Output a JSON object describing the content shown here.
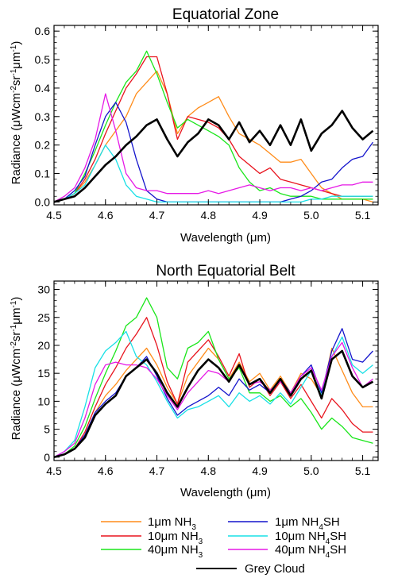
{
  "chart_data": [
    {
      "type": "line",
      "title": "Equatorial Zone",
      "xlabel": "Wavelength (μm)",
      "ylabel": "Radiance (μWcm⁻²sr⁻¹μm⁻¹)",
      "xlim": [
        4.5,
        5.13
      ],
      "ylim": [
        -0.01,
        0.62
      ],
      "xticks": [
        "4.5",
        "4.6",
        "4.7",
        "4.8",
        "4.9",
        "5.0",
        "5.1"
      ],
      "yticks": [
        "0.0",
        "0.1",
        "0.2",
        "0.3",
        "0.4",
        "0.5",
        "0.6"
      ],
      "x": [
        4.5,
        4.52,
        4.54,
        4.56,
        4.58,
        4.6,
        4.62,
        4.64,
        4.66,
        4.68,
        4.7,
        4.72,
        4.74,
        4.76,
        4.78,
        4.8,
        4.82,
        4.84,
        4.86,
        4.88,
        4.9,
        4.92,
        4.94,
        4.96,
        4.98,
        5.0,
        5.02,
        5.04,
        5.06,
        5.08,
        5.1,
        5.12
      ],
      "series": [
        {
          "name": "1μm NH₃",
          "color": "#ff8c1a",
          "values": [
            0.0,
            0.01,
            0.03,
            0.07,
            0.13,
            0.2,
            0.25,
            0.3,
            0.38,
            0.42,
            0.46,
            0.38,
            0.24,
            0.3,
            0.33,
            0.35,
            0.37,
            0.3,
            0.24,
            0.22,
            0.2,
            0.17,
            0.14,
            0.14,
            0.15,
            0.1,
            0.05,
            0.03,
            0.01,
            0.01,
            0.01,
            0.0
          ]
        },
        {
          "name": "10μm NH₃",
          "color": "#e8141e",
          "values": [
            0.0,
            0.01,
            0.03,
            0.08,
            0.15,
            0.24,
            0.32,
            0.4,
            0.45,
            0.51,
            0.51,
            0.38,
            0.22,
            0.3,
            0.29,
            0.28,
            0.26,
            0.22,
            0.16,
            0.13,
            0.1,
            0.12,
            0.08,
            0.07,
            0.06,
            0.05,
            0.04,
            0.03,
            0.02,
            0.02,
            0.02,
            0.02
          ]
        },
        {
          "name": "40μm NH₃",
          "color": "#1ae61a",
          "values": [
            0.0,
            0.01,
            0.03,
            0.1,
            0.18,
            0.27,
            0.35,
            0.42,
            0.46,
            0.53,
            0.45,
            0.35,
            0.26,
            0.29,
            0.27,
            0.25,
            0.23,
            0.2,
            0.12,
            0.07,
            0.04,
            0.05,
            0.03,
            0.02,
            0.02,
            0.02,
            0.01,
            0.01,
            0.01,
            0.01,
            0.01,
            0.01
          ]
        },
        {
          "name": "1μm NH₄SH",
          "color": "#1414cc",
          "values": [
            0.0,
            0.01,
            0.04,
            0.09,
            0.2,
            0.3,
            0.35,
            0.28,
            0.15,
            0.04,
            0.01,
            0.0,
            0.0,
            0.0,
            0.0,
            0.0,
            0.0,
            0.0,
            0.0,
            0.0,
            0.0,
            0.0,
            0.0,
            0.01,
            0.02,
            0.04,
            0.07,
            0.08,
            0.12,
            0.15,
            0.16,
            0.21
          ]
        },
        {
          "name": "10μm NH₄SH",
          "color": "#19e0e6",
          "values": [
            0.0,
            0.01,
            0.03,
            0.06,
            0.13,
            0.2,
            0.15,
            0.06,
            0.02,
            0.01,
            0.0,
            0.0,
            0.0,
            0.0,
            0.0,
            0.0,
            0.0,
            0.0,
            0.0,
            0.0,
            0.0,
            0.0,
            0.0,
            0.0,
            0.0,
            0.01,
            0.01,
            0.02,
            0.02,
            0.02,
            0.02,
            0.02
          ]
        },
        {
          "name": "40μm NH₄SH",
          "color": "#e619e6",
          "values": [
            0.0,
            0.02,
            0.05,
            0.12,
            0.22,
            0.38,
            0.25,
            0.1,
            0.05,
            0.04,
            0.04,
            0.03,
            0.03,
            0.03,
            0.03,
            0.04,
            0.03,
            0.04,
            0.05,
            0.06,
            0.05,
            0.04,
            0.05,
            0.05,
            0.04,
            0.05,
            0.04,
            0.05,
            0.06,
            0.06,
            0.07,
            0.07
          ]
        },
        {
          "name": "Grey Cloud",
          "color": "#000000",
          "values": [
            0.0,
            0.01,
            0.02,
            0.05,
            0.09,
            0.13,
            0.16,
            0.2,
            0.23,
            0.27,
            0.29,
            0.22,
            0.16,
            0.21,
            0.24,
            0.29,
            0.27,
            0.22,
            0.28,
            0.21,
            0.25,
            0.2,
            0.27,
            0.2,
            0.29,
            0.18,
            0.24,
            0.27,
            0.32,
            0.26,
            0.22,
            0.25
          ]
        }
      ]
    },
    {
      "type": "line",
      "title": "North Equatorial Belt",
      "xlabel": "Wavelength (μm)",
      "ylabel": "Radiance (μWcm⁻²sr⁻¹μm⁻¹)",
      "xlim": [
        4.5,
        5.13
      ],
      "ylim": [
        -0.6,
        31.5
      ],
      "xticks": [
        "4.5",
        "4.6",
        "4.7",
        "4.8",
        "4.9",
        "5.0",
        "5.1"
      ],
      "yticks": [
        "0",
        "5",
        "10",
        "15",
        "20",
        "25",
        "30"
      ],
      "x": [
        4.5,
        4.52,
        4.54,
        4.56,
        4.58,
        4.6,
        4.62,
        4.64,
        4.66,
        4.68,
        4.7,
        4.72,
        4.74,
        4.76,
        4.78,
        4.8,
        4.82,
        4.84,
        4.86,
        4.88,
        4.9,
        4.92,
        4.94,
        4.96,
        4.98,
        5.0,
        5.02,
        5.04,
        5.06,
        5.08,
        5.1,
        5.12
      ],
      "series": [
        {
          "name": "1μm NH₃",
          "color": "#ff8c1a",
          "values": [
            0.0,
            0.5,
            1.5,
            4.0,
            8.0,
            11.0,
            13.0,
            15.5,
            17.5,
            19.5,
            16.5,
            12.5,
            9.5,
            14.5,
            17.0,
            19.5,
            17.5,
            14.0,
            17.0,
            13.5,
            15.0,
            12.0,
            14.5,
            11.5,
            15.0,
            14.0,
            11.0,
            19.5,
            15.5,
            11.5,
            9.0,
            9.0
          ]
        },
        {
          "name": "10μm NH₃",
          "color": "#e8141e",
          "values": [
            0.0,
            0.5,
            1.5,
            4.5,
            9.0,
            13.0,
            16.0,
            19.5,
            22.0,
            25.0,
            20.0,
            13.5,
            9.5,
            17.0,
            19.0,
            21.0,
            18.0,
            14.5,
            18.5,
            12.5,
            14.0,
            11.0,
            13.5,
            10.5,
            13.0,
            10.0,
            7.0,
            10.5,
            8.5,
            6.0,
            4.5,
            4.5
          ]
        },
        {
          "name": "40μm NH₃",
          "color": "#1ae61a",
          "values": [
            0.0,
            0.5,
            2.0,
            5.5,
            10.5,
            15.0,
            19.0,
            23.5,
            25.0,
            28.5,
            25.0,
            16.0,
            14.0,
            19.5,
            20.5,
            22.5,
            17.5,
            14.0,
            16.0,
            11.5,
            11.5,
            10.0,
            11.0,
            9.0,
            10.5,
            8.0,
            5.0,
            7.0,
            5.5,
            3.5,
            3.0,
            2.5
          ]
        },
        {
          "name": "1μm NH₄SH",
          "color": "#1414cc",
          "values": [
            0.0,
            0.5,
            1.5,
            4.0,
            8.0,
            10.0,
            11.5,
            14.5,
            16.0,
            18.0,
            14.5,
            10.5,
            7.5,
            9.0,
            10.0,
            11.0,
            12.5,
            11.0,
            14.0,
            12.0,
            13.0,
            11.5,
            14.0,
            11.5,
            14.5,
            16.5,
            11.5,
            19.0,
            23.0,
            17.5,
            17.0,
            19.0
          ]
        },
        {
          "name": "10μm NH₄SH",
          "color": "#19e0e6",
          "values": [
            0.0,
            1.0,
            3.0,
            9.0,
            16.0,
            19.0,
            20.5,
            22.5,
            18.0,
            16.5,
            13.5,
            10.0,
            7.0,
            8.5,
            9.0,
            10.0,
            11.0,
            9.0,
            11.5,
            10.0,
            11.0,
            9.5,
            11.5,
            9.5,
            12.5,
            15.5,
            11.0,
            18.0,
            21.5,
            16.5,
            15.0,
            16.5
          ]
        },
        {
          "name": "40μm NH₄SH",
          "color": "#e619e6",
          "values": [
            0.0,
            1.0,
            2.5,
            7.0,
            13.0,
            16.5,
            17.0,
            16.5,
            16.5,
            16.0,
            14.0,
            11.0,
            8.5,
            11.5,
            13.5,
            15.5,
            15.0,
            13.5,
            16.5,
            13.0,
            13.5,
            12.0,
            13.5,
            11.5,
            14.5,
            16.0,
            12.0,
            18.0,
            20.5,
            16.0,
            12.5,
            14.0
          ]
        },
        {
          "name": "Grey Cloud",
          "color": "#000000",
          "values": [
            0.0,
            0.5,
            1.5,
            3.5,
            7.5,
            9.5,
            11.0,
            14.5,
            16.0,
            17.5,
            15.0,
            11.5,
            9.0,
            12.5,
            15.5,
            17.5,
            16.0,
            13.5,
            16.5,
            13.0,
            14.0,
            11.5,
            14.0,
            11.0,
            14.0,
            15.5,
            10.5,
            17.5,
            19.0,
            14.5,
            12.5,
            13.5
          ]
        }
      ]
    }
  ],
  "legend": {
    "items": [
      {
        "size": "1μm",
        "species": "NH",
        "subscript": "3",
        "tail": "",
        "color": "#ff8c1a"
      },
      {
        "size": "10μm",
        "species": "NH",
        "subscript": "3",
        "tail": "",
        "color": "#e8141e"
      },
      {
        "size": "40μm",
        "species": "NH",
        "subscript": "3",
        "tail": "",
        "color": "#1ae61a"
      },
      {
        "size": "1μm",
        "species": "NH",
        "subscript": "4",
        "tail": "SH",
        "color": "#1414cc"
      },
      {
        "size": "10μm",
        "species": "NH",
        "subscript": "4",
        "tail": "SH",
        "color": "#19e0e6"
      },
      {
        "size": "40μm",
        "species": "NH",
        "subscript": "4",
        "tail": "SH",
        "color": "#e619e6"
      }
    ],
    "grey_cloud": {
      "label": "Grey Cloud",
      "color": "#000000"
    }
  }
}
